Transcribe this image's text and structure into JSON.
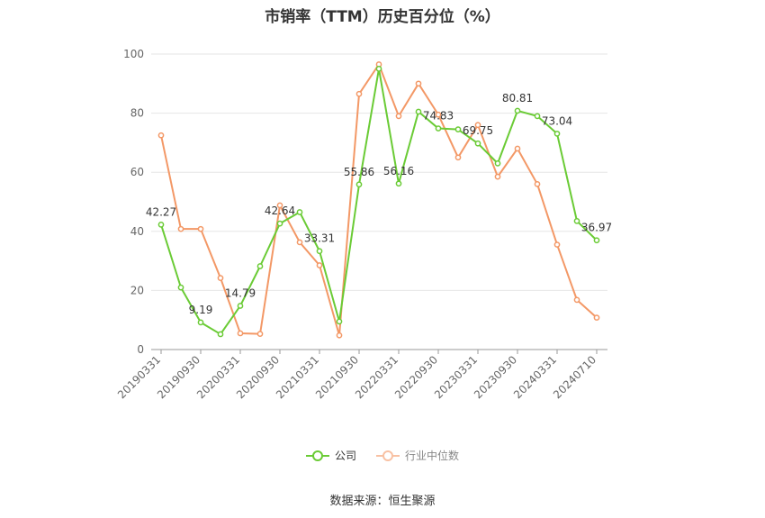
{
  "title": "市销率（TTM）历史百分位（%）",
  "source": "数据来源：恒生聚源",
  "legend": {
    "company": "公司",
    "industry": "行业中位数"
  },
  "chart_data": {
    "type": "line",
    "ylim": [
      0,
      100
    ],
    "yticks": [
      0,
      20,
      40,
      60,
      80,
      100
    ],
    "grid": true,
    "legend_position": "bottom",
    "xtick_labels": [
      "20190331",
      "20190930",
      "20200331",
      "20200930",
      "20210331",
      "20210930",
      "20220331",
      "20220930",
      "20230331",
      "20230930",
      "20240331",
      "20240710"
    ],
    "xtick_positions": [
      0,
      2,
      4,
      6,
      8,
      10,
      12,
      14,
      16,
      18,
      20,
      22
    ],
    "series": [
      {
        "name": "公司",
        "color": "#6acb35",
        "values": [
          42.27,
          21,
          9.19,
          5.2,
          14.79,
          28.2,
          42.64,
          46.5,
          33.31,
          9.5,
          55.86,
          95,
          56.16,
          80.5,
          74.83,
          74.5,
          69.75,
          63,
          80.81,
          79,
          73.04,
          43.5,
          36.97
        ]
      },
      {
        "name": "行业中位数",
        "color": "#f39866",
        "values": [
          72.5,
          40.8,
          40.8,
          24.2,
          5.5,
          5.3,
          48.8,
          36.3,
          28.5,
          4.8,
          86.5,
          96.5,
          79,
          90,
          79.5,
          65,
          76,
          58.5,
          68,
          56,
          35.5,
          16.8,
          10.8
        ]
      }
    ],
    "data_labels": [
      {
        "index": 0,
        "text": "42.27"
      },
      {
        "index": 2,
        "text": "9.19"
      },
      {
        "index": 4,
        "text": "14.79"
      },
      {
        "index": 6,
        "text": "42.64"
      },
      {
        "index": 8,
        "text": "33.31"
      },
      {
        "index": 10,
        "text": "55.86"
      },
      {
        "index": 12,
        "text": "56.16"
      },
      {
        "index": 14,
        "text": "74.83"
      },
      {
        "index": 16,
        "text": "69.75"
      },
      {
        "index": 18,
        "text": "80.81"
      },
      {
        "index": 20,
        "text": "73.04"
      },
      {
        "index": 22,
        "text": "36.97"
      }
    ]
  }
}
